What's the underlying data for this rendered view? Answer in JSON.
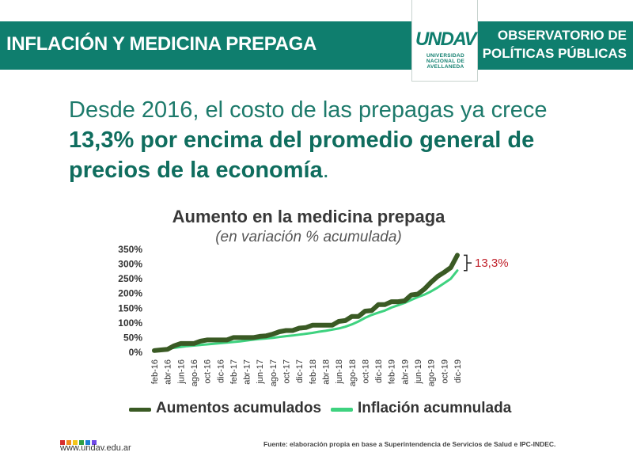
{
  "header": {
    "title": "INFLACIÓN Y MEDICINA PREPAGA",
    "observatorio_line1": "OBSERVATORIO DE",
    "observatorio_line2": "POLÍTICAS PÚBLICAS",
    "background": "#0f7e6e"
  },
  "logo": {
    "word": "UNDAV",
    "line1": "UNIVERSIDAD",
    "line2": "NACIONAL DE",
    "line3": "AVELLANEDA"
  },
  "headline": {
    "part1": "Desde 2016, el costo de las prepagas ya crece",
    "bold": "13,3% por encima del promedio general de precios de la economía",
    "end": "."
  },
  "chart_data": {
    "type": "line",
    "title": "Aumento en la medicina prepaga",
    "subtitle": "(en variación % acumulada)",
    "xlabel": "",
    "ylabel": "",
    "ylim": [
      0,
      350
    ],
    "yticks": [
      0,
      50,
      100,
      150,
      200,
      250,
      300,
      350
    ],
    "ytick_labels": [
      "0%",
      "50%",
      "100%",
      "150%",
      "200%",
      "250%",
      "300%",
      "350%"
    ],
    "categories": [
      "feb-16",
      "mar-16",
      "abr-16",
      "may-16",
      "jun-16",
      "jul-16",
      "ago-16",
      "sep-16",
      "oct-16",
      "nov-16",
      "dic-16",
      "ene-17",
      "feb-17",
      "mar-17",
      "abr-17",
      "may-17",
      "jun-17",
      "jul-17",
      "ago-17",
      "sep-17",
      "oct-17",
      "nov-17",
      "dic-17",
      "ene-18",
      "feb-18",
      "mar-18",
      "abr-18",
      "may-18",
      "jun-18",
      "jul-18",
      "ago-18",
      "sep-18",
      "oct-18",
      "nov-18",
      "dic-18",
      "ene-19",
      "feb-19",
      "mar-19",
      "abr-19",
      "may-19",
      "jun-19",
      "jul-19",
      "ago-19",
      "sep-19",
      "oct-19",
      "nov-19",
      "dic-19"
    ],
    "tick_labels": [
      "feb-16",
      "abr-16",
      "jun-16",
      "ago-16",
      "oct-16",
      "dic-16",
      "feb-17",
      "abr-17",
      "jun-17",
      "ago-17",
      "oct-17",
      "dic-17",
      "feb-18",
      "abr-18",
      "jun-18",
      "ago-18",
      "oct-18",
      "dic-18",
      "feb-19",
      "abr-19",
      "jun-19",
      "ago-19",
      "oct-19",
      "dic-19"
    ],
    "series": [
      {
        "name": "Aumentos acumulados",
        "color": "#3a5a24",
        "values": [
          6,
          8,
          10,
          22,
          30,
          30,
          30,
          38,
          42,
          42,
          42,
          42,
          50,
          50,
          50,
          50,
          54,
          56,
          62,
          70,
          74,
          74,
          82,
          84,
          92,
          92,
          92,
          92,
          105,
          108,
          122,
          122,
          140,
          142,
          162,
          162,
          172,
          172,
          175,
          195,
          198,
          215,
          238,
          258,
          272,
          288,
          330
        ]
      },
      {
        "name": "Inflación acumnulada",
        "color": "#3ed27f",
        "values": [
          4,
          8,
          12,
          15,
          18,
          21,
          23,
          25,
          27,
          29,
          31,
          33,
          35,
          37,
          40,
          43,
          45,
          47,
          49,
          52,
          55,
          57,
          60,
          63,
          66,
          70,
          73,
          77,
          81,
          87,
          95,
          105,
          117,
          127,
          135,
          142,
          152,
          160,
          168,
          178,
          188,
          196,
          207,
          220,
          235,
          250,
          278
        ]
      }
    ],
    "annotation": "13,3%"
  },
  "colors": {
    "primary": "#0f7e6e",
    "annotation": "#c0202a",
    "dark_series": "#3a5a24",
    "light_series": "#3ed27f"
  },
  "footer": {
    "site": "www.undav.edu.ar",
    "source": "Fuente: elaboración propia en base a Superintendencia de Servicios de Salud e IPC-INDEC.",
    "dot_colors": [
      "#d62f2f",
      "#f28c1c",
      "#f5c518",
      "#2f9e44",
      "#1c7ed6",
      "#7048e8"
    ]
  }
}
